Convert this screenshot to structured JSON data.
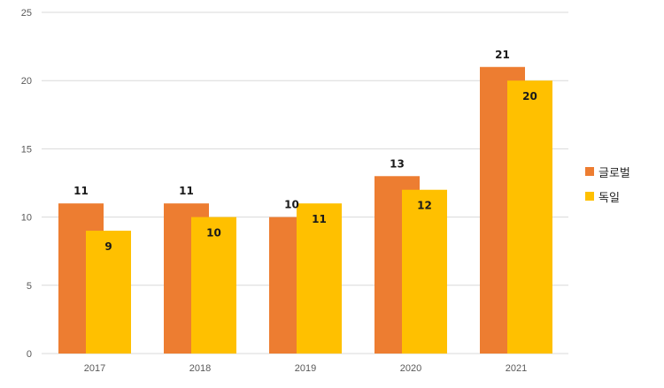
{
  "chart_data": {
    "type": "bar",
    "categories": [
      "2017",
      "2018",
      "2019",
      "2020",
      "2021"
    ],
    "series": [
      {
        "name": "글로벌",
        "values": [
          11,
          11,
          10,
          13,
          21
        ],
        "color": "#ED7D31"
      },
      {
        "name": "독일",
        "values": [
          9,
          10,
          11,
          12,
          20
        ],
        "color": "#FFC000"
      }
    ],
    "yticks": [
      0,
      5,
      10,
      15,
      20,
      25
    ],
    "ylim": [
      0,
      25
    ],
    "grid": true,
    "legend_position": "right",
    "gridline_color": "#d9d9d9"
  }
}
